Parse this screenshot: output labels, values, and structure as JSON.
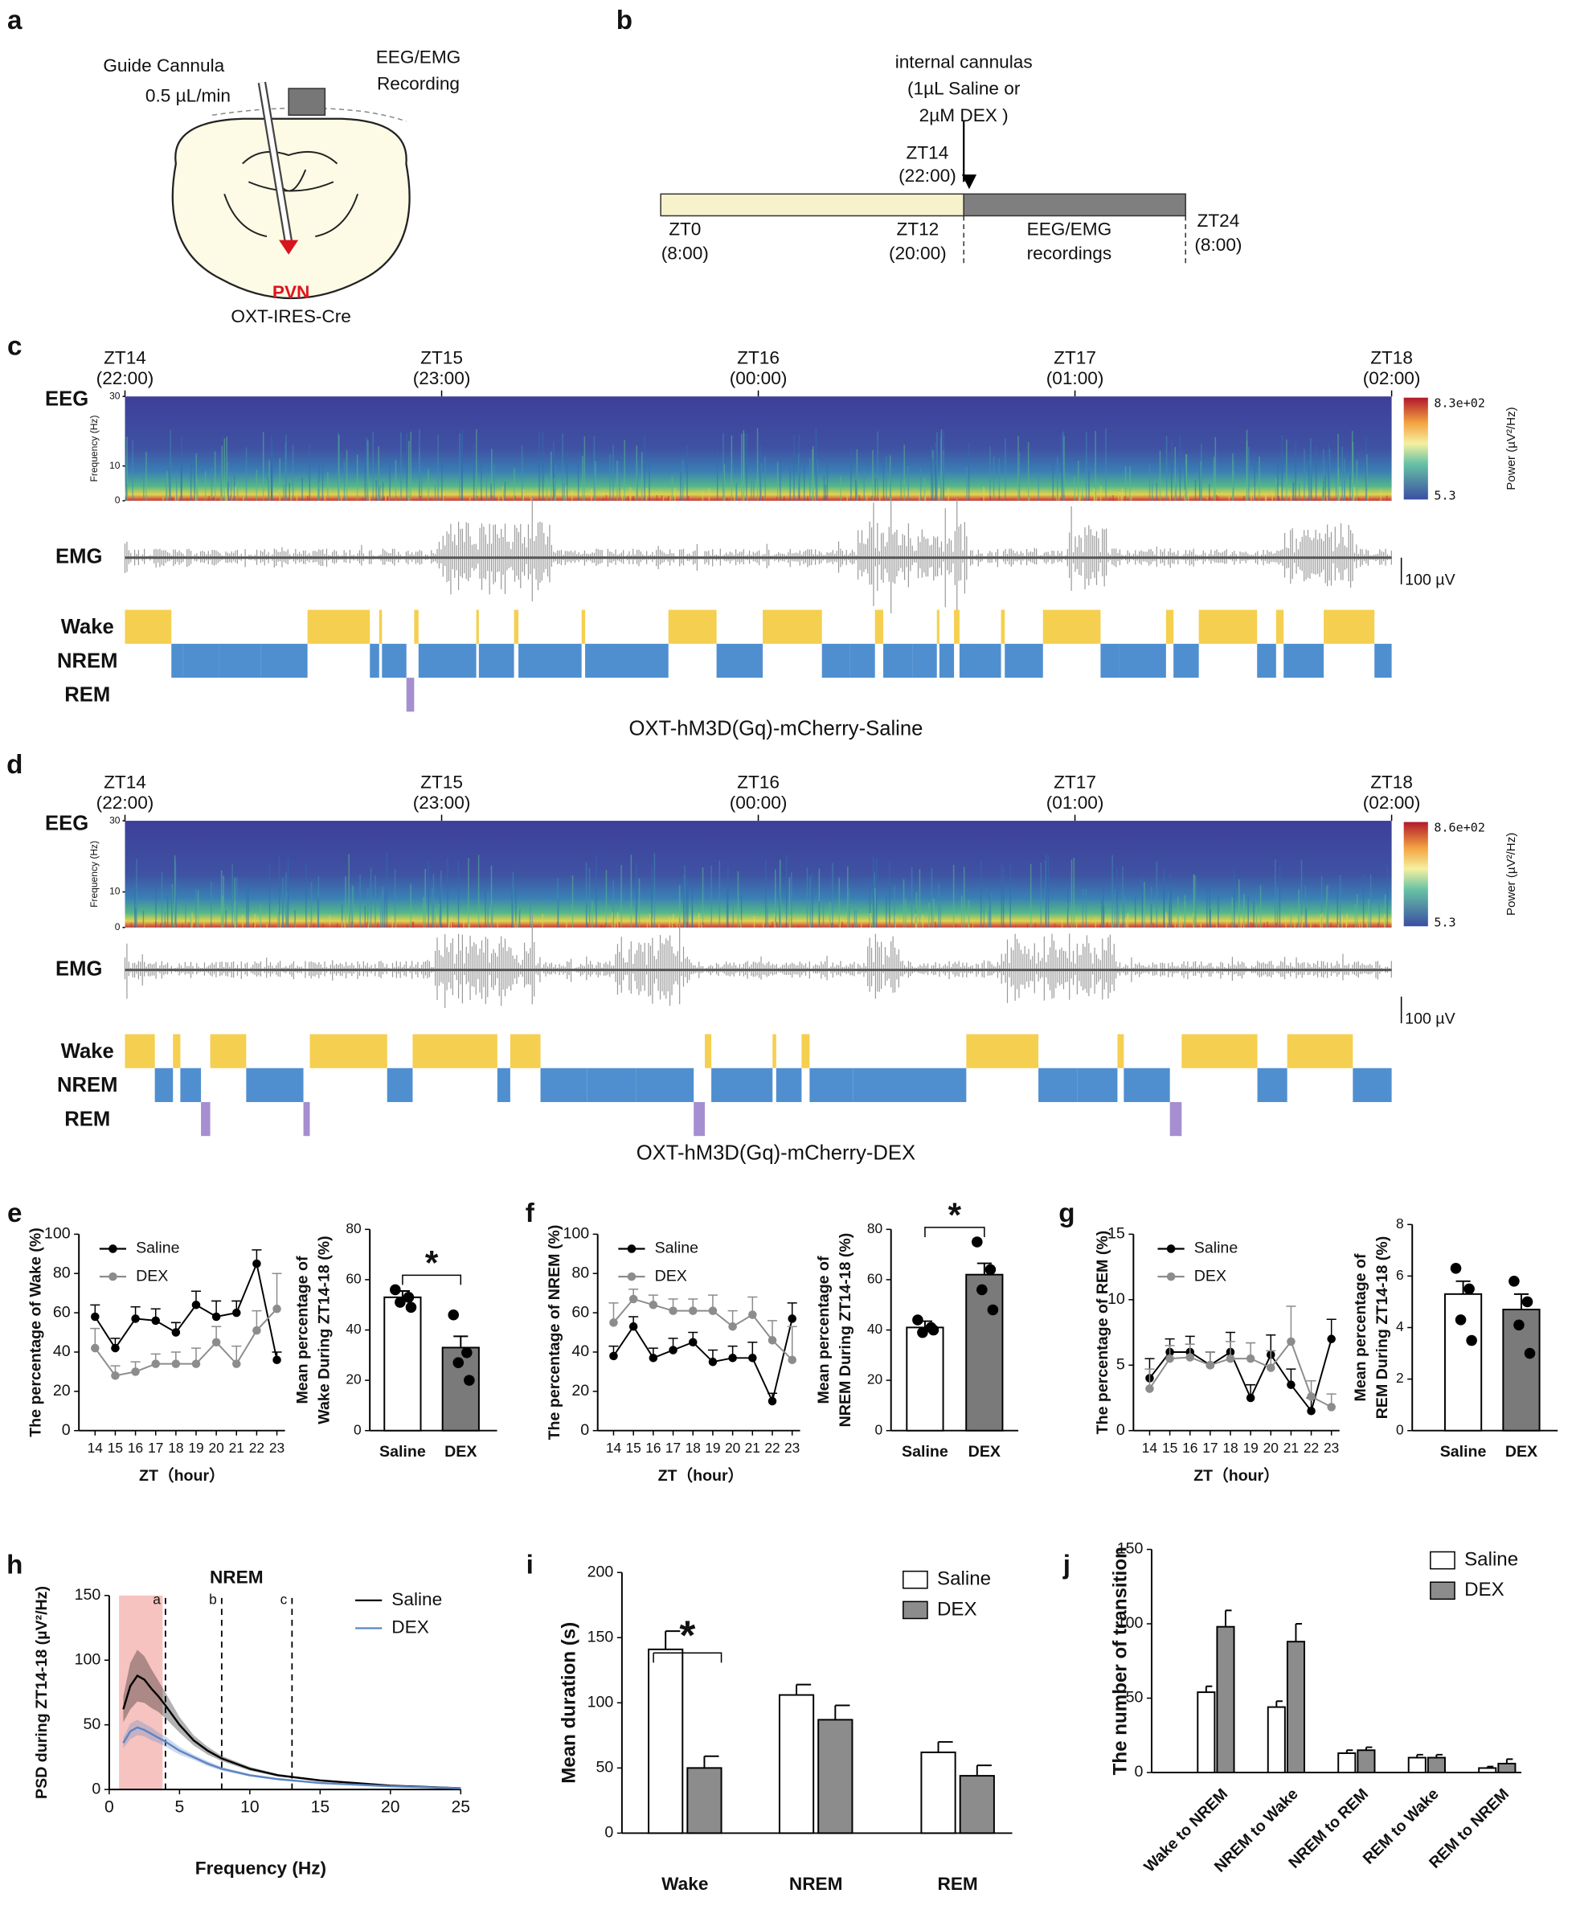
{
  "panel_labels": [
    "a",
    "b",
    "c",
    "d",
    "e",
    "f",
    "g",
    "h",
    "i",
    "j"
  ],
  "panel_a": {
    "cannula": "Guide Cannula",
    "rate": "0.5 µL/min",
    "recording": [
      "EEG/EMG",
      "Recording"
    ],
    "region": "PVN",
    "mouse": "OXT-IRES-Cre"
  },
  "panel_b": {
    "injection": [
      "internal cannulas",
      "(1µL Saline or",
      "2µM DEX )"
    ],
    "zt14": [
      "ZT14",
      "(22:00)"
    ],
    "zt0": [
      "ZT0",
      "(8:00)"
    ],
    "zt12": [
      "ZT12",
      "(20:00)"
    ],
    "recordings": [
      "EEG/EMG",
      "recordings"
    ],
    "zt24": [
      "ZT24",
      "(8:00)"
    ]
  },
  "panel_c": {
    "times": [
      [
        "ZT14",
        "(22:00)"
      ],
      [
        "ZT15",
        "(23:00)"
      ],
      [
        "ZT16",
        "(00:00)"
      ],
      [
        "ZT17",
        "(01:00)"
      ],
      [
        "ZT18",
        "(02:00)"
      ]
    ],
    "rows": [
      "EEG",
      "EMG",
      "Wake",
      "NREM",
      "REM"
    ],
    "freq_label": "Frequency (Hz)",
    "freq_lim": [
      0,
      30
    ],
    "freq_ticks": [
      0,
      10,
      30
    ],
    "colorbar_max": "8.3e+02",
    "colorbar_min": "5.3",
    "power_label": "Power (µV²/Hz)",
    "scale": "100 µV",
    "title": "OXT-hM3D(Gq)-mCherry-Saline"
  },
  "panel_d": {
    "times": [
      [
        "ZT14",
        "(22:00)"
      ],
      [
        "ZT15",
        "(23:00)"
      ],
      [
        "ZT16",
        "(00:00)"
      ],
      [
        "ZT17",
        "(01:00)"
      ],
      [
        "ZT18",
        "(02:00)"
      ]
    ],
    "rows": [
      "EEG",
      "EMG",
      "Wake",
      "NREM",
      "REM"
    ],
    "freq_label": "Frequency (Hz)",
    "freq_lim": [
      0,
      30
    ],
    "freq_ticks": [
      0,
      10,
      30
    ],
    "colorbar_max": "8.6e+02",
    "colorbar_min": "5.3",
    "power_label": "Power (µV²/Hz)",
    "scale": "100 µV",
    "title": "OXT-hM3D(Gq)-mCherry-DEX"
  },
  "chart_data": [
    {
      "type": "line",
      "ylabel": "The percentage of Wake (%)",
      "xlabel": "ZT（hour）",
      "x": [
        14,
        15,
        16,
        17,
        18,
        19,
        20,
        21,
        22,
        23
      ],
      "xlim": [
        13.2,
        23.4
      ],
      "xticks": [
        14,
        15,
        16,
        17,
        18,
        19,
        20,
        21,
        22,
        23
      ],
      "ylim": [
        0,
        100
      ],
      "yticks": [
        0,
        20,
        40,
        60,
        80,
        100
      ],
      "series": [
        {
          "name": "Saline",
          "color": "#000000",
          "values": [
            58,
            42,
            57,
            56,
            50,
            64,
            58,
            60,
            85,
            36
          ],
          "errors": [
            6,
            5,
            6,
            6,
            5,
            7,
            8,
            6,
            7,
            4
          ]
        },
        {
          "name": "DEX",
          "color": "#8c8c8c",
          "values": [
            42,
            28,
            30,
            34,
            34,
            34,
            45,
            34,
            51,
            62
          ],
          "errors": [
            10,
            5,
            5,
            5,
            6,
            8,
            8,
            9,
            10,
            18
          ]
        }
      ]
    },
    {
      "type": "bar",
      "ylabel": [
        "Mean percentage of",
        "Wake During ZT14-18 (%)"
      ],
      "categories": [
        "Saline",
        "DEX"
      ],
      "values": [
        53,
        33
      ],
      "errors": [
        2.5,
        4.5
      ],
      "points": [
        [
          56,
          53,
          51,
          49
        ],
        [
          46,
          31,
          27,
          20
        ]
      ],
      "colors": [
        "#ffffff",
        "#7a7a7a"
      ],
      "ylim": [
        0,
        80
      ],
      "yticks": [
        0,
        20,
        40,
        60,
        80
      ],
      "significance": "*"
    },
    {
      "type": "line",
      "ylabel": "The percentage of NREM (%)",
      "xlabel": "ZT（hour）",
      "x": [
        14,
        15,
        16,
        17,
        18,
        19,
        20,
        21,
        22,
        23
      ],
      "xlim": [
        13.2,
        23.4
      ],
      "xticks": [
        14,
        15,
        16,
        17,
        18,
        19,
        20,
        21,
        22,
        23
      ],
      "ylim": [
        0,
        100
      ],
      "yticks": [
        0,
        20,
        40,
        60,
        80,
        100
      ],
      "series": [
        {
          "name": "Saline",
          "color": "#000000",
          "values": [
            38,
            53,
            37,
            41,
            45,
            35,
            37,
            37,
            15,
            57
          ],
          "errors": [
            5,
            5,
            5,
            6,
            5,
            6,
            6,
            8,
            4,
            8
          ]
        },
        {
          "name": "DEX",
          "color": "#8c8c8c",
          "values": [
            55,
            67,
            64,
            61,
            61,
            61,
            53,
            59,
            46,
            36
          ],
          "errors": [
            10,
            5,
            5,
            6,
            6,
            8,
            8,
            9,
            10,
            17
          ]
        }
      ]
    },
    {
      "type": "bar",
      "ylabel": [
        "Mean percentage of",
        "NREM During ZT14-18 (%)"
      ],
      "categories": [
        "Saline",
        "DEX"
      ],
      "values": [
        41,
        62
      ],
      "errors": [
        2.5,
        4.5
      ],
      "points": [
        [
          44,
          41,
          39,
          40
        ],
        [
          75,
          64,
          56,
          48
        ]
      ],
      "colors": [
        "#ffffff",
        "#7a7a7a"
      ],
      "ylim": [
        0,
        80
      ],
      "yticks": [
        0,
        20,
        40,
        60,
        80
      ],
      "significance": "*"
    },
    {
      "type": "line",
      "ylabel": "The percentage of REM (%)",
      "xlabel": "ZT（hour）",
      "x": [
        14,
        15,
        16,
        17,
        18,
        19,
        20,
        21,
        22,
        23
      ],
      "xlim": [
        13.2,
        23.4
      ],
      "xticks": [
        14,
        15,
        16,
        17,
        18,
        19,
        20,
        21,
        22,
        23
      ],
      "ylim": [
        0,
        15
      ],
      "yticks": [
        0,
        5,
        10,
        15
      ],
      "series": [
        {
          "name": "Saline",
          "color": "#000000",
          "values": [
            4,
            6,
            6,
            5,
            6,
            2.5,
            5.8,
            3.5,
            1.5,
            7
          ],
          "errors": [
            1.5,
            1,
            1.2,
            1,
            1.5,
            1,
            1.5,
            1.2,
            1,
            1.5
          ]
        },
        {
          "name": "DEX",
          "color": "#8c8c8c",
          "values": [
            3.2,
            5.5,
            5.6,
            5,
            5.5,
            5.5,
            4.8,
            6.8,
            2.6,
            1.8
          ],
          "errors": [
            1.5,
            1,
            1,
            1,
            1.3,
            1.2,
            1.3,
            2.7,
            1.2,
            1
          ]
        }
      ]
    },
    {
      "type": "bar",
      "ylabel": [
        "Mean percentage of",
        "REM During ZT14-18 (%)"
      ],
      "categories": [
        "Saline",
        "DEX"
      ],
      "values": [
        5.3,
        4.7
      ],
      "errors": [
        0.5,
        0.6
      ],
      "points": [
        [
          6.3,
          5.5,
          4.3,
          3.5
        ],
        [
          5.8,
          5.0,
          4.1,
          3.0
        ]
      ],
      "colors": [
        "#ffffff",
        "#7a7a7a"
      ],
      "ylim": [
        0,
        8
      ],
      "yticks": [
        0,
        2,
        4,
        6,
        8
      ]
    },
    {
      "type": "line",
      "title": "NREM",
      "ylabel": "PSD during ZT14-18 (µV²/Hz)",
      "xlabel": "Frequency (Hz)",
      "x": [
        1,
        1.5,
        2,
        2.5,
        3,
        3.5,
        4,
        5,
        6,
        7,
        8,
        10,
        12,
        15,
        20,
        25
      ],
      "xlim": [
        0,
        25
      ],
      "xticks": [
        0,
        5,
        10,
        15,
        20,
        25
      ],
      "ylim": [
        0,
        150
      ],
      "yticks": [
        0,
        50,
        100,
        150
      ],
      "series": [
        {
          "name": "Saline",
          "color": "#000000",
          "values": [
            62,
            80,
            88,
            85,
            78,
            72,
            65,
            50,
            38,
            30,
            24,
            16,
            11,
            7,
            3,
            1
          ],
          "errors": [
            10,
            18,
            20,
            18,
            15,
            12,
            10,
            6,
            4,
            3,
            2,
            1.5,
            1,
            0.5,
            0.3,
            0.2
          ]
        },
        {
          "name": "DEX",
          "color": "#5b84c4",
          "values": [
            36,
            45,
            48,
            46,
            43,
            40,
            37,
            30,
            25,
            20,
            16,
            11,
            8,
            5,
            2.5,
            1
          ],
          "errors": [
            4,
            6,
            6,
            5,
            5,
            4,
            4,
            3,
            2,
            2,
            1.5,
            1,
            0.8,
            0.5,
            0.3,
            0.2
          ]
        }
      ],
      "vlines": [
        {
          "value": 4,
          "label": "a"
        },
        {
          "value": 8,
          "label": "b"
        },
        {
          "value": 13,
          "label": "c"
        }
      ],
      "highlight": [
        0.7,
        3.8
      ],
      "highlight_color": "#f6c3c1"
    },
    {
      "type": "grouped-bar",
      "ylabel": "Mean duration (s)",
      "categories": [
        "Wake",
        "NREM",
        "REM"
      ],
      "ylim": [
        0,
        200
      ],
      "yticks": [
        0,
        50,
        100,
        150,
        200
      ],
      "significance": "*",
      "series": [
        {
          "name": "Saline",
          "color": "#ffffff",
          "values": [
            141,
            106,
            62
          ],
          "errors": [
            14,
            8,
            8
          ]
        },
        {
          "name": "DEX",
          "color": "#8c8c8c",
          "values": [
            50,
            87,
            44
          ],
          "errors": [
            9,
            11,
            8
          ]
        }
      ]
    },
    {
      "type": "grouped-bar",
      "ylabel": "The number of transition",
      "categories": [
        "Wake to NREM",
        "NREM to Wake",
        "NREM to REM",
        "REM to Wake",
        "REM to NREM"
      ],
      "ylim": [
        0,
        150
      ],
      "yticks": [
        0,
        50,
        100,
        150
      ],
      "series": [
        {
          "name": "Saline",
          "color": "#ffffff",
          "values": [
            54,
            44,
            13,
            10,
            3
          ],
          "errors": [
            4,
            4,
            2,
            2,
            1
          ]
        },
        {
          "name": "DEX",
          "color": "#8c8c8c",
          "values": [
            98,
            88,
            15,
            10,
            6
          ],
          "errors": [
            11,
            12,
            2,
            2,
            3
          ]
        }
      ]
    }
  ]
}
